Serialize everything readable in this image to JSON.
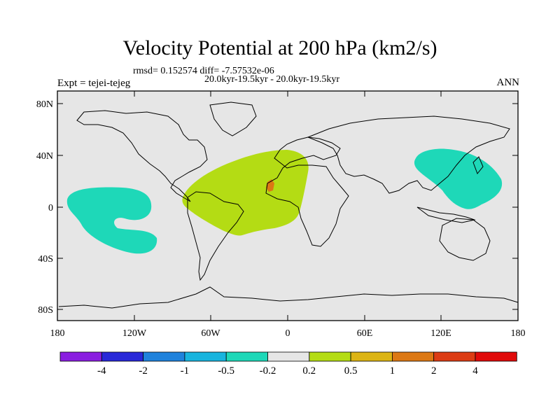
{
  "title": "Velocity Potential at 200 hPa (km2/s)",
  "stats_text": "rmsd= 0.152574 diff= -7.57532e-06",
  "period_text": "20.0kyr-19.5kyr - 20.0kyr-19.5kyr",
  "experiment_text": "Expt = tejei-tejeg",
  "season_text": "ANN",
  "lat_labels": [
    "80N",
    "40N",
    "0",
    "40S",
    "80S"
  ],
  "lon_labels": [
    "180",
    "120W",
    "60W",
    "0",
    "60E",
    "120E",
    "180"
  ],
  "colorbar": {
    "labels": [
      "-4",
      "-2",
      "-1",
      "-0.5",
      "-0.2",
      "0.2",
      "0.5",
      "1",
      "2",
      "4"
    ],
    "colors": [
      "#8a1ee0",
      "#2828d8",
      "#1f82dc",
      "#18b4de",
      "#1ed8b8",
      "#e6e6e6",
      "#b4dc14",
      "#dcb414",
      "#dc7814",
      "#dc3c14",
      "#e00a0a"
    ]
  },
  "colors": {
    "background": "#e6e6e6",
    "negative_region": "#1ed8b8",
    "positive_region": "#b4dc14",
    "strong_positive": "#dc7814"
  }
}
